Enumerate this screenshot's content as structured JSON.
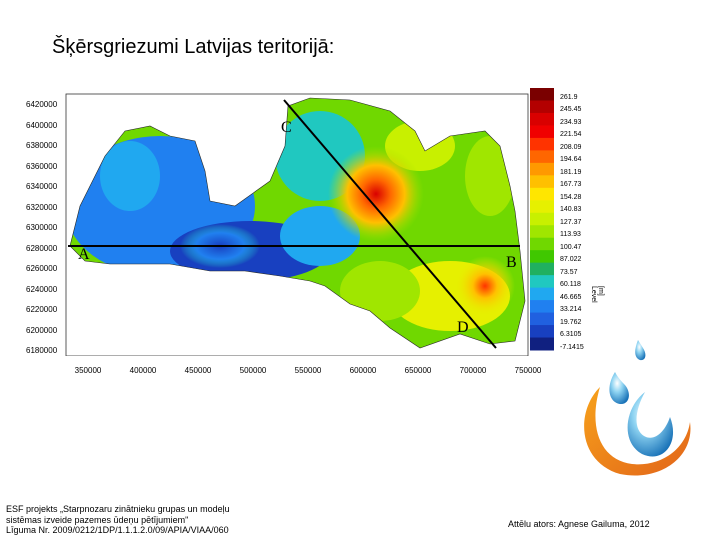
{
  "title": "Šķērsgriezumi Latvijas teritorijā:",
  "map": {
    "y_ticks": [
      "6420000",
      "6400000",
      "6380000",
      "6360000",
      "6340000",
      "6320000",
      "6300000",
      "6280000",
      "6260000",
      "6240000",
      "6220000",
      "6200000",
      "6180000"
    ],
    "x_ticks": [
      "350000",
      "400000",
      "450000",
      "500000",
      "550000",
      "600000",
      "650000",
      "700000",
      "750000"
    ],
    "section_labels": [
      "A",
      "B",
      "C",
      "D"
    ],
    "colorbar_ticks": [
      "261.9",
      "245.45",
      "234.93",
      "221.54",
      "208.09",
      "194.64",
      "181.19",
      "167.73",
      "154.28",
      "140.83",
      "127.37",
      "113.93",
      "100.47",
      "87.022",
      "73.57",
      "60.118",
      "46.665",
      "33.214",
      "19.762",
      "6.3105",
      "-7.1415"
    ],
    "colorbar_unit": "[m] Level",
    "colorbar_colors": [
      "#7a0000",
      "#b30000",
      "#d90000",
      "#f00000",
      "#ff3300",
      "#ff6600",
      "#ff9900",
      "#ffc000",
      "#ffe600",
      "#e6f000",
      "#c8f000",
      "#a0e600",
      "#70d800",
      "#40c800",
      "#20b060",
      "#20c8c0",
      "#20a8f0",
      "#2080f0",
      "#2060e0",
      "#1840c0",
      "#102080"
    ]
  },
  "footer": {
    "line1": "ESF projekts „Starpnozaru zinātnieku grupas un modeļu",
    "line2": "sistēmas izveide pazemes ūdeņu pētījumiem\"",
    "line3": "Līguma Nr. 2009/0212/1DP/1.1.1.2.0/09/APIA/VIAA/060",
    "credit": "Attēlu ators: Agnese Gailuma, 2012"
  }
}
